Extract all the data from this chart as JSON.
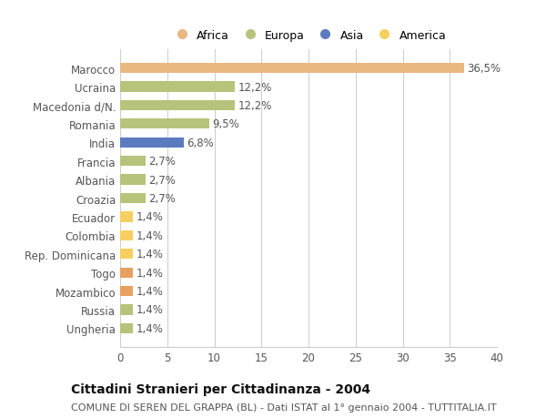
{
  "categories": [
    "Ungheria",
    "Russia",
    "Mozambico",
    "Togo",
    "Rep. Dominicana",
    "Colombia",
    "Ecuador",
    "Croazia",
    "Albania",
    "Francia",
    "India",
    "Romania",
    "Macedonia d/N.",
    "Ucraina",
    "Marocco"
  ],
  "values": [
    1.4,
    1.4,
    1.4,
    1.4,
    1.4,
    1.4,
    1.4,
    2.7,
    2.7,
    2.7,
    6.8,
    9.5,
    12.2,
    12.2,
    36.5
  ],
  "colors": [
    "#b5c47a",
    "#b5c47a",
    "#e8a060",
    "#e8a060",
    "#f5d060",
    "#f5d060",
    "#f5d060",
    "#b5c47a",
    "#b5c47a",
    "#b5c47a",
    "#5b7bbf",
    "#b5c47a",
    "#b5c47a",
    "#b5c47a",
    "#e8b880"
  ],
  "labels": [
    "1,4%",
    "1,4%",
    "1,4%",
    "1,4%",
    "1,4%",
    "1,4%",
    "1,4%",
    "2,7%",
    "2,7%",
    "2,7%",
    "6,8%",
    "9,5%",
    "12,2%",
    "12,2%",
    "36,5%"
  ],
  "legend_labels": [
    "Africa",
    "Europa",
    "Asia",
    "America"
  ],
  "legend_colors": [
    "#e8b880",
    "#b5c47a",
    "#5b7bbf",
    "#f5d060"
  ],
  "title": "Cittadini Stranieri per Cittadinanza - 2004",
  "subtitle": "COMUNE DI SEREN DEL GRAPPA (BL) - Dati ISTAT al 1° gennaio 2004 - TUTTITALIA.IT",
  "xlim": [
    0,
    40
  ],
  "xticks": [
    0,
    5,
    10,
    15,
    20,
    25,
    30,
    35,
    40
  ],
  "background_color": "#ffffff",
  "grid_color": "#cccccc",
  "bar_height": 0.55,
  "title_fontsize": 10,
  "subtitle_fontsize": 8,
  "tick_fontsize": 8.5,
  "label_fontsize": 8.5
}
